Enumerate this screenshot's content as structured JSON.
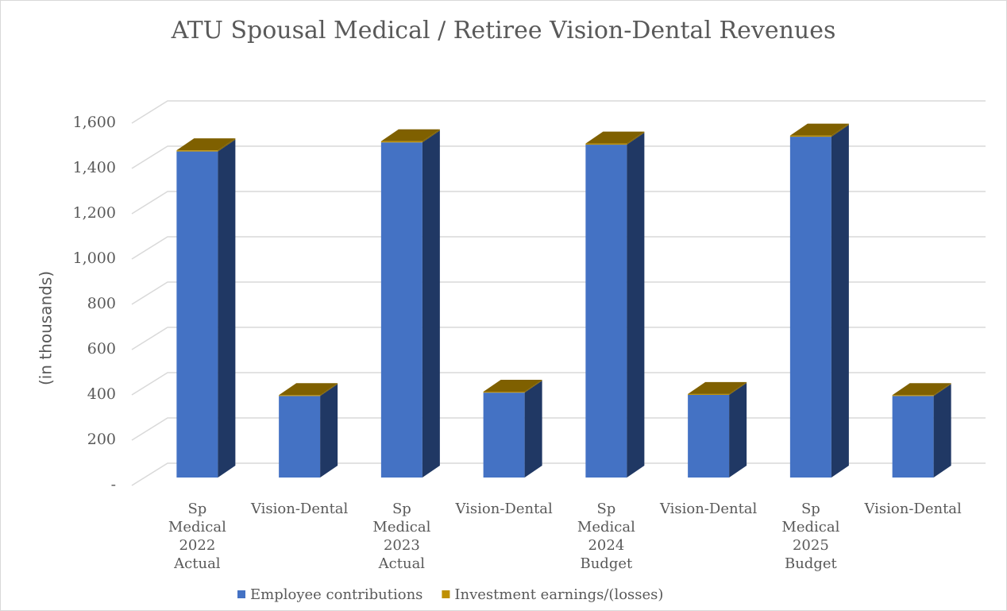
{
  "chart_data": {
    "type": "bar3d_stacked",
    "title": "ATU Spousal Medical / Retiree Vision-Dental Revenues",
    "y_label": "(in thousands)",
    "categories": [
      "Sp Medical 2022 Actual",
      "Vision-Dental",
      "Sp Medical 2023 Actual",
      "Vision-Dental",
      "Sp Medical 2024 Budget",
      "Vision-Dental",
      "Sp Medical 2025 Budget",
      "Vision-Dental"
    ],
    "series": [
      {
        "name": "Employee contributions",
        "color": "#4472c4",
        "side_color": "#203864",
        "values": [
          1440,
          360,
          1480,
          375,
          1470,
          365,
          1505,
          360
        ]
      },
      {
        "name": "Investment earnings/(losses)",
        "color": "#bf9000",
        "side_color": "#7f6000",
        "values": [
          5,
          4,
          5,
          4,
          5,
          4,
          5,
          4
        ]
      }
    ],
    "ylim": [
      0,
      1600
    ],
    "yticks": [
      {
        "value": 0,
        "label": "-"
      },
      200,
      400,
      600,
      800,
      {
        "value": 1000,
        "label": "1,000"
      },
      {
        "value": 1200,
        "label": "1,200"
      },
      {
        "value": 1400,
        "label": "1,400"
      },
      {
        "value": 1600,
        "label": "1,600"
      }
    ],
    "grid": true
  }
}
